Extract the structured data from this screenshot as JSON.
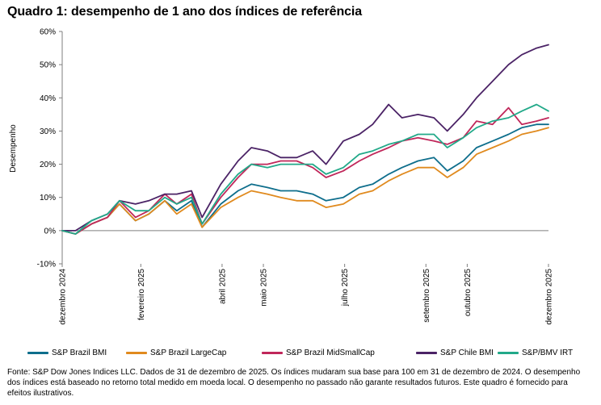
{
  "title": "Quadro 1: desempenho de 1 ano dos índices de referência",
  "footnote": "Fonte: S&P Dow Jones Indices LLC. Dados de 31 de dezembro de 2025. Os índices mudaram sua base para 100 em 31 de dezembro de 2024. O desempenho dos índices está baseado no retorno total medido em moeda local. O desempenho no passado não garante resultados futuros. Este quadro é fornecido para efeitos ilustrativos.",
  "chart_data": {
    "type": "line",
    "title": "Quadro 1: desempenho de 1 ano dos índices de referência",
    "xlabel": "",
    "ylabel": "Desempenho",
    "ylim": [
      -10,
      60
    ],
    "yticks": [
      "-10%",
      "0%",
      "10%",
      "20%",
      "30%",
      "40%",
      "50%",
      "60%"
    ],
    "xlim": [
      "2024-12-31",
      "2025-12-31"
    ],
    "xticks": [
      {
        "label": "dezembro 2024",
        "date": "2024-12-31"
      },
      {
        "label": "fevereiro 2025",
        "date": "2025-02-28"
      },
      {
        "label": "abril 2025",
        "date": "2025-04-30"
      },
      {
        "label": "maio 2025",
        "date": "2025-05-31"
      },
      {
        "label": "julho 2025",
        "date": "2025-07-31"
      },
      {
        "label": "setembro 2025",
        "date": "2025-09-30"
      },
      {
        "label": "outubro 2025",
        "date": "2025-10-31"
      },
      {
        "label": "dezembro 2025",
        "date": "2025-12-31"
      }
    ],
    "grid": false,
    "legend_position": "bottom",
    "x": [
      "2024-12-31",
      "2025-01-10",
      "2025-01-22",
      "2025-02-03",
      "2025-02-12",
      "2025-02-24",
      "2025-03-06",
      "2025-03-18",
      "2025-03-27",
      "2025-04-07",
      "2025-04-15",
      "2025-04-29",
      "2025-05-12",
      "2025-05-22",
      "2025-06-03",
      "2025-06-13",
      "2025-06-25",
      "2025-07-07",
      "2025-07-17",
      "2025-07-30",
      "2025-08-11",
      "2025-08-21",
      "2025-09-02",
      "2025-09-12",
      "2025-09-24",
      "2025-10-06",
      "2025-10-16",
      "2025-10-28",
      "2025-11-07",
      "2025-11-19",
      "2025-12-01",
      "2025-12-11",
      "2025-12-22",
      "2025-12-31"
    ],
    "series": [
      {
        "name": "S&P Brazil BMI",
        "color": "#0e6e8c",
        "values": [
          0,
          -1,
          2,
          4,
          8,
          3,
          5,
          9,
          6,
          9,
          1,
          8,
          12,
          14,
          13,
          12,
          12,
          11,
          9,
          10,
          13,
          14,
          17,
          19,
          21,
          22,
          18,
          21,
          25,
          27,
          29,
          31,
          32,
          32
        ]
      },
      {
        "name": "S&P Brazil LargeCap",
        "color": "#e08a1e",
        "values": [
          0,
          -1,
          2,
          4,
          8,
          3,
          5,
          9,
          5,
          8,
          1,
          7,
          10,
          12,
          11,
          10,
          9,
          9,
          7,
          8,
          11,
          12,
          15,
          17,
          19,
          19,
          16,
          19,
          23,
          25,
          27,
          29,
          30,
          31
        ]
      },
      {
        "name": "S&P Brazil MidSmallCap",
        "color": "#c0275a",
        "values": [
          0,
          -1,
          2,
          4,
          9,
          4,
          6,
          11,
          8,
          11,
          2,
          10,
          16,
          20,
          20,
          21,
          21,
          19,
          16,
          18,
          21,
          23,
          25,
          27,
          28,
          27,
          26,
          28,
          33,
          32,
          37,
          32,
          33,
          34
        ]
      },
      {
        "name": "S&P Chile BMI",
        "color": "#4b2366",
        "values": [
          0,
          0,
          3,
          5,
          9,
          8,
          9,
          11,
          11,
          12,
          4,
          14,
          21,
          25,
          24,
          22,
          22,
          24,
          20,
          27,
          29,
          32,
          38,
          34,
          35,
          34,
          30,
          35,
          40,
          45,
          50,
          53,
          55,
          56
        ]
      },
      {
        "name": "S&P/BMV IRT",
        "color": "#22a989",
        "values": [
          0,
          -1,
          3,
          5,
          9,
          6,
          6,
          10,
          8,
          10,
          2,
          11,
          17,
          20,
          19,
          20,
          20,
          20,
          17,
          19,
          23,
          24,
          26,
          27,
          29,
          29,
          25,
          28,
          31,
          33,
          34,
          36,
          38,
          36
        ]
      }
    ]
  }
}
